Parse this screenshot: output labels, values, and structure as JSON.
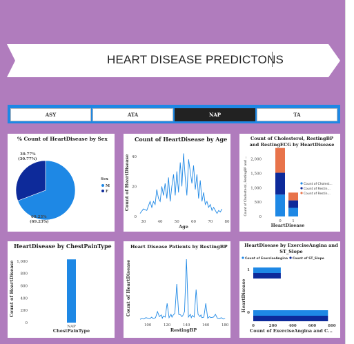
{
  "banner": {
    "title": "HEART DISEASE PREDICTONS"
  },
  "slicer": {
    "options": [
      "ASY",
      "ATA",
      "NAP",
      "TA"
    ],
    "selected": "NAP"
  },
  "colors": {
    "background": "#b07cbd",
    "blue": "#1e88e5",
    "navy": "#0d2a9a",
    "orange": "#e8734a"
  },
  "chart_data": [
    {
      "type": "pie",
      "title": "% Count of HeartDisease by Sex",
      "legend_title": "Sex",
      "legend_position": "right",
      "slices": [
        {
          "name": "M",
          "value": 69.23,
          "label_pct": "69.23%",
          "label_paren": "(69.23%)",
          "color": "#1e88e5"
        },
        {
          "name": "F",
          "value": 30.77,
          "label_pct": "30.77%",
          "label_paren": "(30.77%)",
          "color": "#0d2a9a"
        }
      ]
    },
    {
      "type": "line",
      "title": "Count of HeartDisease by Age",
      "xlabel": "Age",
      "ylabel": "Count of HeartDisease",
      "xlim": [
        28,
        80
      ],
      "ylim": [
        0,
        45
      ],
      "xticks": [
        30,
        40,
        50,
        60,
        70,
        80
      ],
      "yticks": [
        0,
        20,
        40
      ],
      "x": [
        28,
        30,
        32,
        34,
        35,
        36,
        37,
        38,
        39,
        40,
        41,
        42,
        43,
        44,
        45,
        46,
        47,
        48,
        49,
        50,
        51,
        52,
        53,
        54,
        55,
        56,
        57,
        58,
        59,
        60,
        61,
        62,
        63,
        64,
        65,
        66,
        67,
        68,
        69,
        70,
        71,
        72,
        74,
        75,
        76,
        77
      ],
      "y": [
        2,
        5,
        4,
        10,
        6,
        10,
        8,
        18,
        12,
        10,
        20,
        14,
        22,
        12,
        26,
        10,
        20,
        28,
        14,
        30,
        16,
        36,
        20,
        42,
        26,
        14,
        38,
        30,
        22,
        34,
        18,
        28,
        12,
        24,
        10,
        16,
        8,
        10,
        6,
        8,
        4,
        6,
        2,
        4,
        3,
        5
      ]
    },
    {
      "type": "bar",
      "stacked": true,
      "title": "Count of Cholesterol, RestingBP and RestingECG by HeartDisease",
      "xlabel": "HeartDisease",
      "ylabel": "Count of Cholesterol, RestingBP and ...",
      "categories": [
        "0",
        "1"
      ],
      "ylim": [
        0,
        2300
      ],
      "yticks": [
        0,
        500,
        1000,
        1500,
        2000
      ],
      "ytick_labels": [
        "0",
        "500",
        "1,000",
        "1,500",
        "2,000"
      ],
      "legend_position": "right",
      "series": [
        {
          "name": "Count of Cholest...",
          "values": [
            760,
            300
          ],
          "color": "#1e88e5"
        },
        {
          "name": "Count of Restin...",
          "values": [
            760,
            260
          ],
          "color": "#0d2a9a"
        },
        {
          "name": "Count of Restin...",
          "values": [
            860,
            270
          ],
          "color": "#e8734a"
        }
      ]
    },
    {
      "type": "bar",
      "title": "HeartDisease by ChestPainType",
      "xlabel": "ChestPainType",
      "ylabel": "Count of HeartDisease",
      "categories": [
        "NAP"
      ],
      "values": [
        1030
      ],
      "ylim": [
        0,
        1100
      ],
      "yticks": [
        0,
        200,
        400,
        600,
        800,
        1000
      ],
      "ytick_labels": [
        "0",
        "200",
        "400",
        "600",
        "800",
        "1,000"
      ]
    },
    {
      "type": "line",
      "title": "Heart Disease Patients by RestingBP",
      "xlabel": "RestingBP",
      "ylabel": "Count of HeartDisease",
      "xlim": [
        92,
        182
      ],
      "ylim": [
        0,
        230
      ],
      "xticks": [
        100,
        120,
        140,
        160,
        180
      ],
      "x": [
        92,
        94,
        96,
        98,
        100,
        102,
        104,
        105,
        106,
        108,
        110,
        112,
        114,
        115,
        116,
        118,
        120,
        122,
        124,
        125,
        126,
        128,
        130,
        132,
        134,
        135,
        136,
        138,
        140,
        142,
        144,
        145,
        146,
        148,
        150,
        152,
        154,
        155,
        156,
        158,
        160,
        162,
        164,
        165,
        168,
        170,
        172,
        174,
        176,
        178,
        180
      ],
      "y": [
        2,
        5,
        3,
        8,
        6,
        4,
        10,
        6,
        5,
        8,
        30,
        12,
        18,
        6,
        14,
        10,
        60,
        8,
        20,
        10,
        16,
        24,
        130,
        20,
        18,
        12,
        14,
        30,
        220,
        10,
        20,
        8,
        16,
        10,
        110,
        20,
        12,
        18,
        8,
        10,
        60,
        6,
        12,
        8,
        10,
        20,
        6,
        4,
        8,
        3,
        5
      ]
    },
    {
      "type": "bar",
      "orientation": "horizontal",
      "title": "HeartDisease by ExerciseAngina and ST_Slope",
      "xlabel": "Count of ExerciseAngina and C...",
      "ylabel": "HeartDisease",
      "categories": [
        "1",
        "0"
      ],
      "xlim": [
        0,
        800
      ],
      "xticks": [
        0,
        200,
        400,
        600,
        800
      ],
      "legend_position": "top",
      "series": [
        {
          "name": "Count of ExerciseAngina",
          "values": [
            280,
            760
          ],
          "color": "#1e88e5"
        },
        {
          "name": "Count of ST_Slope",
          "values": [
            280,
            760
          ],
          "color": "#0d2a9a"
        }
      ]
    }
  ]
}
